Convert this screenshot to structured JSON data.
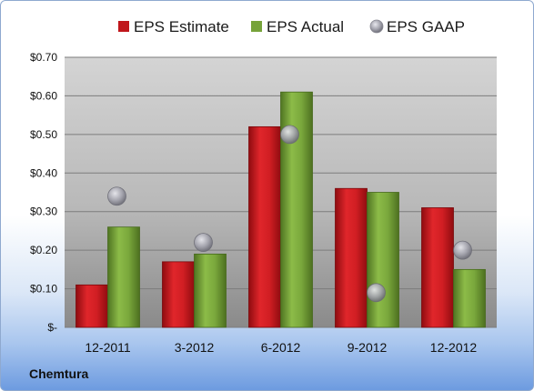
{
  "company": "Chemtura",
  "colors": {
    "estimate": "#c0161b",
    "actual": "#76a33a",
    "gaap": "#a9a9b3"
  },
  "chart_data": {
    "type": "bar",
    "categories": [
      "12-2011",
      "3-2012",
      "6-2012",
      "9-2012",
      "12-2012"
    ],
    "series": [
      {
        "name": "EPS Estimate",
        "type": "bar",
        "values": [
          0.11,
          0.17,
          0.52,
          0.36,
          0.31
        ]
      },
      {
        "name": "EPS Actual",
        "type": "bar",
        "values": [
          0.26,
          0.19,
          0.61,
          0.35,
          0.15
        ]
      },
      {
        "name": "EPS GAAP",
        "type": "scatter",
        "values": [
          0.34,
          0.22,
          0.5,
          0.09,
          0.2
        ]
      }
    ],
    "y_ticks": [
      "$-",
      "$0.10",
      "$0.20",
      "$0.30",
      "$0.40",
      "$0.50",
      "$0.60",
      "$0.70"
    ],
    "ylim": [
      0,
      0.7
    ],
    "grid": true,
    "legend_position": "top"
  }
}
